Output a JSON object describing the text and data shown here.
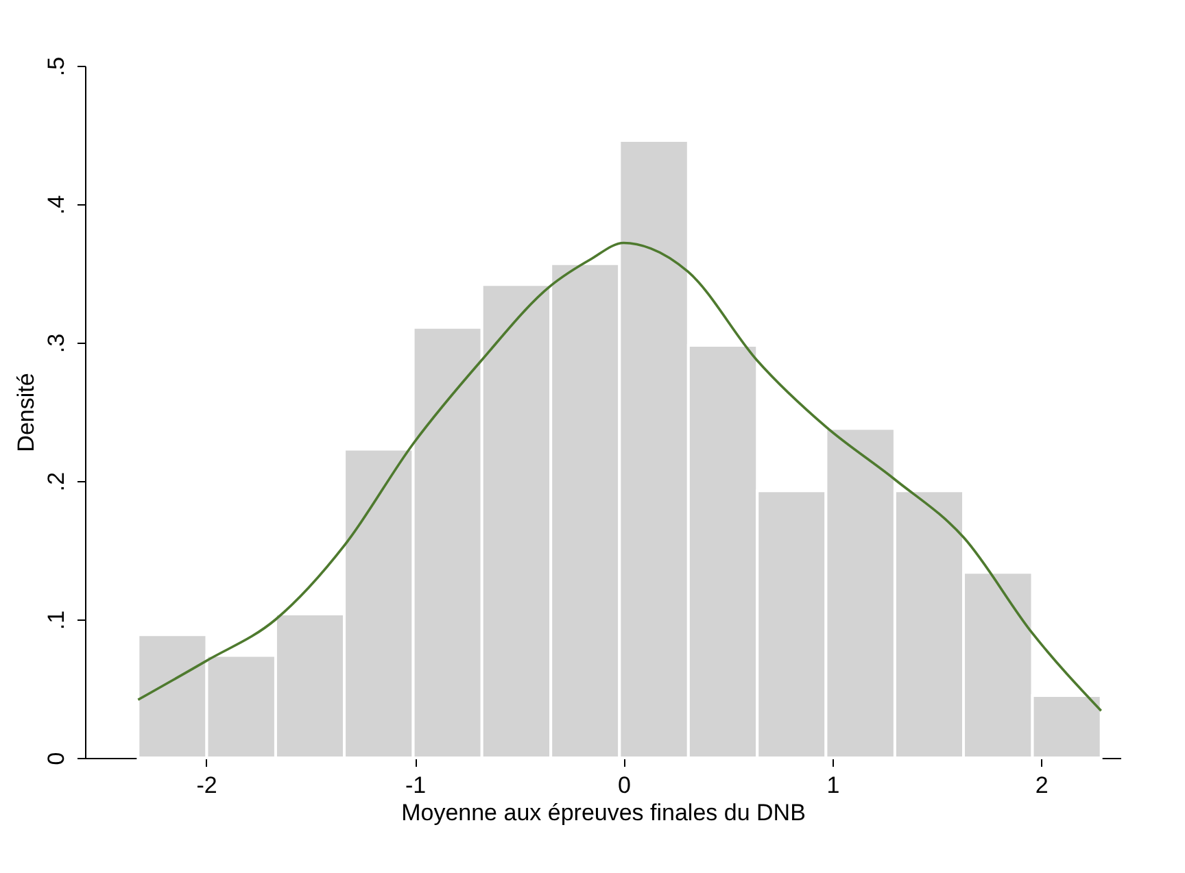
{
  "chart_data": {
    "type": "histogram",
    "xlabel": "Moyenne aux épreuves finales du DNB",
    "ylabel": "Densité",
    "series": [
      {
        "bins": [
          -2.326,
          -1.997,
          -1.667,
          -1.338,
          -1.008,
          -0.679,
          -0.349,
          -0.02,
          0.31,
          0.64,
          0.969,
          1.299,
          1.628,
          1.958,
          2.287
        ],
        "values": [
          0.089,
          0.074,
          0.104,
          0.223,
          0.311,
          0.342,
          0.357,
          0.446,
          0.298,
          0.193,
          0.238,
          0.193,
          0.134,
          0.045
        ],
        "color": "#d3d3d3"
      },
      {
        "type": "line",
        "x": [
          -2.326,
          -2.0,
          -1.667,
          -1.335,
          -1.008,
          -0.682,
          -0.35,
          -0.16,
          0.0,
          0.13,
          0.31,
          0.64,
          0.97,
          1.3,
          1.63,
          1.958,
          2.287
        ],
        "values": [
          0.042,
          0.07,
          0.1,
          0.154,
          0.227,
          0.287,
          0.341,
          0.36,
          0.372,
          0.368,
          0.351,
          0.287,
          0.239,
          0.201,
          0.159,
          0.09,
          0.034
        ],
        "color": "#4e7a2e"
      }
    ],
    "xlim": [
      -2.58,
      2.38
    ],
    "xticks": [
      -2,
      -1,
      0,
      1,
      2
    ],
    "ylim": [
      0,
      0.5
    ],
    "yticks": [
      {
        "value": 0,
        "label": "0"
      },
      {
        "value": 0.1,
        "label": ".1"
      },
      {
        "value": 0.2,
        "label": ".2"
      },
      {
        "value": 0.3,
        "label": ".3"
      },
      {
        "value": 0.4,
        "label": ".4"
      },
      {
        "value": 0.5,
        "label": ".5"
      }
    ],
    "grid": false
  }
}
